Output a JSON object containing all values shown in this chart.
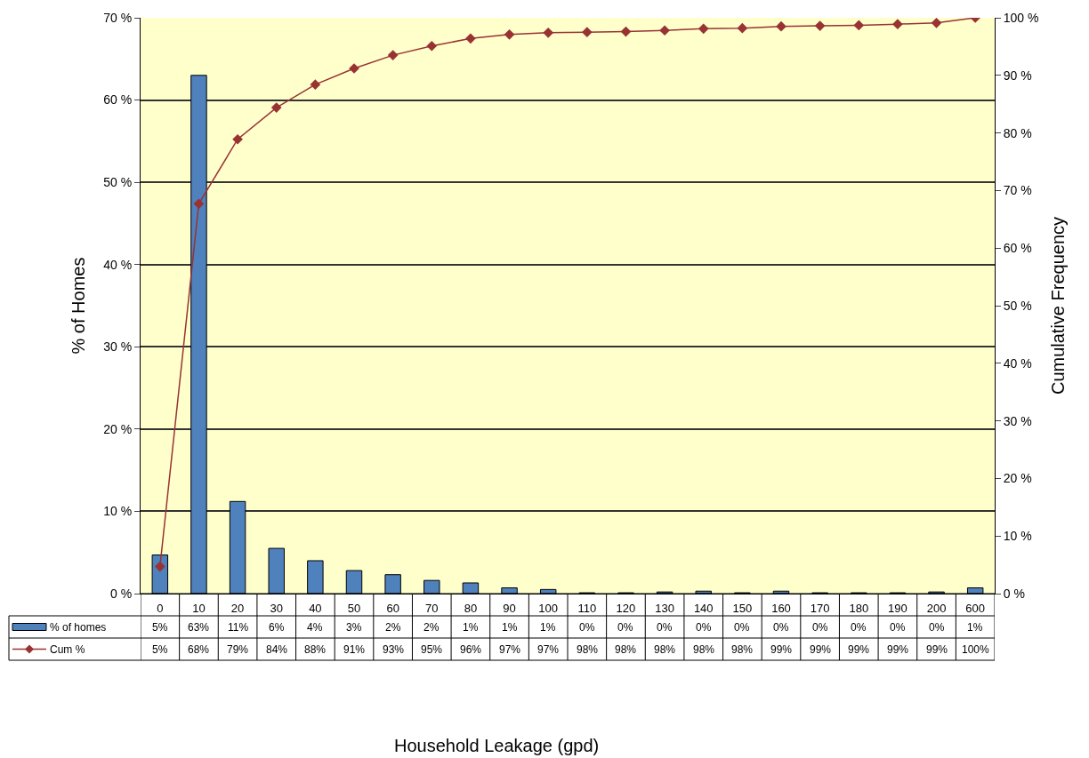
{
  "chart_data": {
    "type": "bar",
    "annotations": [
      "Household Leakage (gpd)"
    ],
    "ylabel": "% of Homes",
    "y2label": "Cumulative Frequency",
    "categories": [
      "0",
      "10",
      "20",
      "30",
      "40",
      "50",
      "60",
      "70",
      "80",
      "90",
      "100",
      "110",
      "120",
      "130",
      "140",
      "150",
      "160",
      "170",
      "180",
      "190",
      "200",
      "600"
    ],
    "series": [
      {
        "name": "% of homes",
        "color": "#4f81bd",
        "values": [
          4.7,
          63,
          11.2,
          5.5,
          4,
          2.8,
          2.3,
          1.6,
          1.3,
          0.7,
          0.5,
          0.1,
          0.1,
          0.2,
          0.3,
          0.1,
          0.3,
          0.1,
          0.1,
          0.1,
          0.2,
          0.7
        ],
        "value_labels": [
          "5%",
          "63%",
          "11%",
          "6%",
          "4%",
          "3%",
          "2%",
          "2%",
          "1%",
          "1%",
          "1%",
          "0%",
          "0%",
          "0%",
          "0%",
          "0%",
          "0%",
          "0%",
          "0%",
          "0%",
          "0%",
          "1%"
        ]
      },
      {
        "name": "Cum %",
        "type": "line",
        "axis": "y2",
        "color": "#993333",
        "marker": "diamond",
        "values": [
          4.7,
          67.7,
          78.9,
          84.4,
          88.4,
          91.2,
          93.5,
          95.1,
          96.4,
          97.1,
          97.4,
          97.5,
          97.6,
          97.8,
          98.1,
          98.2,
          98.5,
          98.6,
          98.7,
          98.9,
          99.1,
          100
        ],
        "value_labels": [
          "5%",
          "68%",
          "79%",
          "84%",
          "88%",
          "91%",
          "93%",
          "95%",
          "96%",
          "97%",
          "97%",
          "98%",
          "98%",
          "98%",
          "98%",
          "98%",
          "99%",
          "99%",
          "99%",
          "99%",
          "99%",
          "100%"
        ]
      }
    ],
    "ylim": [
      0,
      70
    ],
    "yticks": [
      {
        "value": 0,
        "label": "0 %"
      },
      {
        "value": 10,
        "label": "10 %"
      },
      {
        "value": 20,
        "label": "20 %"
      },
      {
        "value": 30,
        "label": "30 %"
      },
      {
        "value": 40,
        "label": "40 %"
      },
      {
        "value": 50,
        "label": "50 %"
      },
      {
        "value": 60,
        "label": "60 %"
      },
      {
        "value": 70,
        "label": "70 %"
      }
    ],
    "y2lim": [
      0,
      100
    ],
    "y2ticks": [
      {
        "value": 0,
        "label": "0 %"
      },
      {
        "value": 10,
        "label": "10 %"
      },
      {
        "value": 20,
        "label": "20 %"
      },
      {
        "value": 30,
        "label": "30 %"
      },
      {
        "value": 40,
        "label": "40 %"
      },
      {
        "value": 50,
        "label": "50 %"
      },
      {
        "value": 60,
        "label": "60 %"
      },
      {
        "value": 70,
        "label": "70 %"
      },
      {
        "value": 80,
        "label": "80 %"
      },
      {
        "value": 90,
        "label": "90 %"
      },
      {
        "value": 100,
        "label": "100 %"
      }
    ],
    "grid": "y",
    "legend": "bottom left"
  }
}
